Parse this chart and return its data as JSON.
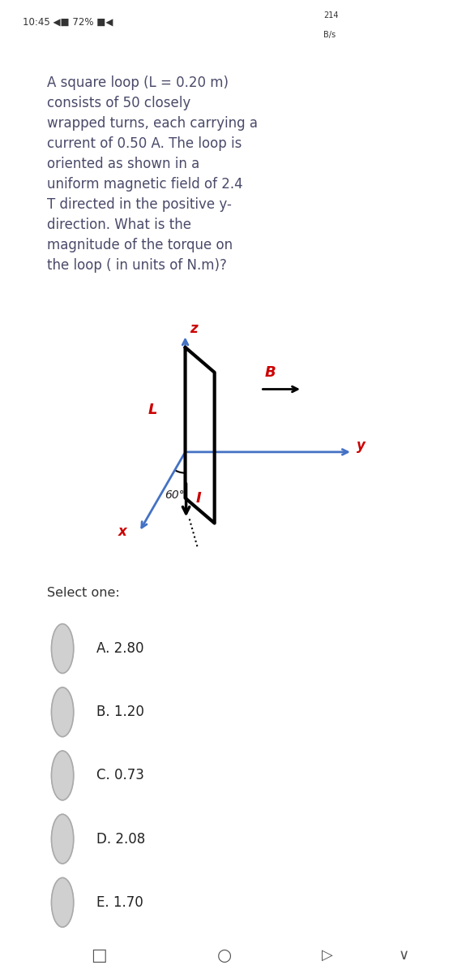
{
  "bg_color": "#ffffff",
  "card_color": "#d6eaf8",
  "diagram_bg": "#ffffff",
  "question_text": "A square loop (L = 0.20 m)\nconsists of 50 closely\nwrapped turns, each carrying a\ncurrent of 0.50 A. The loop is\noriented as shown in a\nuniform magnetic field of 2.4\nT directed in the positive y-\ndirection. What is the\nmagnitude of the torque on\nthe loop ( in units of N.m)?",
  "select_text": "Select one:",
  "options": [
    "A. 2.80",
    "B. 1.20",
    "C. 0.73",
    "D. 2.08",
    "E. 1.70"
  ],
  "axis_color": "#4472c4",
  "label_color": "#cc0000",
  "loop_color": "#000000",
  "text_color": "#333333",
  "card_text_color": "#4a4a6a",
  "status_left": "10:45",
  "status_right": "214\nB/s"
}
